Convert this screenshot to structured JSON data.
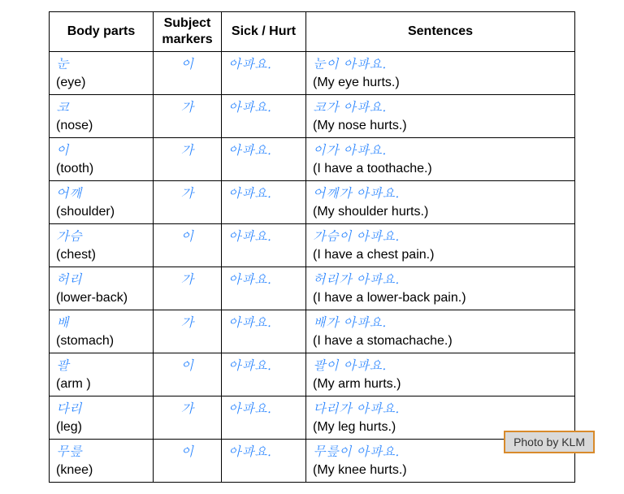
{
  "headers": {
    "col1": "Body parts",
    "col2": "Subject markers",
    "col3": "Sick / Hurt",
    "col4": "Sentences"
  },
  "rows": [
    {
      "body_ko": "눈",
      "body_en": "(eye)",
      "marker": "이",
      "sick": "아파요.",
      "sentence_ko": "눈이 아파요.",
      "sentence_en": "(My eye hurts.)"
    },
    {
      "body_ko": "코",
      "body_en": "(nose)",
      "marker": "가",
      "sick": "아파요.",
      "sentence_ko": "코가 아파요.",
      "sentence_en": "(My nose hurts.)"
    },
    {
      "body_ko": "이",
      "body_en": "(tooth)",
      "marker": "가",
      "sick": "아파요.",
      "sentence_ko": "이가 아파요.",
      "sentence_en": "(I have a toothache.)"
    },
    {
      "body_ko": "어깨",
      "body_en": "(shoulder)",
      "marker": "가",
      "sick": "아파요.",
      "sentence_ko": "어깨가 아파요.",
      "sentence_en": "(My shoulder hurts.)"
    },
    {
      "body_ko": "가슴",
      "body_en": "(chest)",
      "marker": "이",
      "sick": "아파요.",
      "sentence_ko": "가슴이 아파요.",
      "sentence_en": "(I have a chest pain.)"
    },
    {
      "body_ko": "허리",
      "body_en": "(lower-back)",
      "marker": "가",
      "sick": "아파요.",
      "sentence_ko": "허리가 아파요.",
      "sentence_en": "(I have a lower-back pain.)"
    },
    {
      "body_ko": "배",
      "body_en": "(stomach)",
      "marker": "가",
      "sick": "아파요.",
      "sentence_ko": "배가 아파요.",
      "sentence_en": "(I have a stomachache.)"
    },
    {
      "body_ko": "팔",
      "body_en": "(arm )",
      "marker": "이",
      "sick": "아파요.",
      "sentence_ko": "팔이 아파요.",
      "sentence_en": "(My arm hurts.)"
    },
    {
      "body_ko": "다리",
      "body_en": "(leg)",
      "marker": "가",
      "sick": "아파요.",
      "sentence_ko": "다리가 아파요.",
      "sentence_en": "(My leg hurts.)"
    },
    {
      "body_ko": "무릎",
      "body_en": "(knee)",
      "marker": "이",
      "sick": "아파요.",
      "sentence_ko": "무릎이 아파요.",
      "sentence_en": "(My knee hurts.)"
    }
  ],
  "credit": "Photo by KLM",
  "colors": {
    "korean_text": "#1f7fff",
    "english_text": "#000000",
    "border": "#000000",
    "credit_bg": "#d9d9d9",
    "credit_border": "#d88a2b"
  }
}
